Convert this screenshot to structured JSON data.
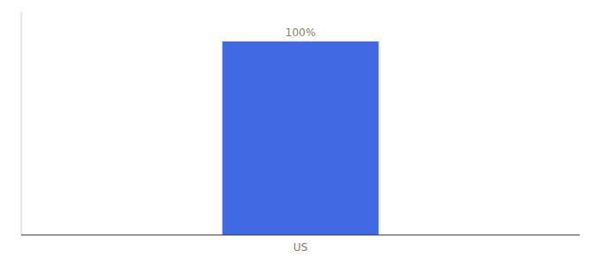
{
  "chart_data": {
    "type": "bar",
    "categories": [
      "US"
    ],
    "values": [
      100
    ],
    "value_labels": [
      "100%"
    ],
    "color": "#4169e1",
    "ylim": [
      0,
      115
    ],
    "data_labels": true,
    "tick_labels": "x",
    "grid": false
  }
}
